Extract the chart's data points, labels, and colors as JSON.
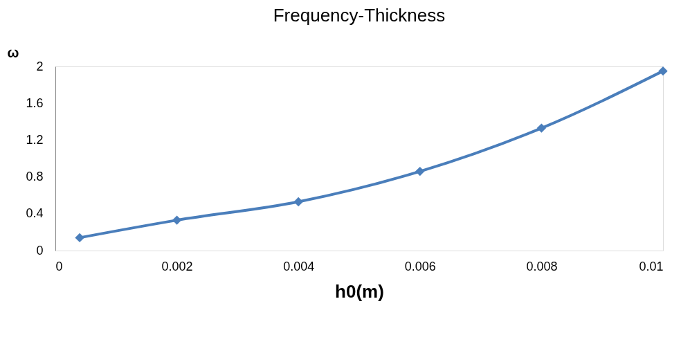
{
  "chart_data": {
    "type": "line",
    "title": "Frequency-Thickness",
    "xlabel": "h0(m)",
    "ylabel": "ω",
    "x": [
      0.0004,
      0.002,
      0.004,
      0.006,
      0.008,
      0.01
    ],
    "series": [
      {
        "color": "#4a7ebb",
        "values": [
          0.14,
          0.33,
          0.53,
          0.86,
          1.33,
          1.95
        ]
      }
    ],
    "xlim": [
      0,
      0.01
    ],
    "xticks": [
      0,
      0.002,
      0.004,
      0.006,
      0.008,
      0.01
    ],
    "ylim": [
      0,
      2
    ],
    "yticks": [
      0,
      0.4,
      0.8,
      1.2,
      1.6,
      2
    ],
    "grid": false,
    "legend": false,
    "marker": "diamond",
    "line_style": "solid"
  }
}
